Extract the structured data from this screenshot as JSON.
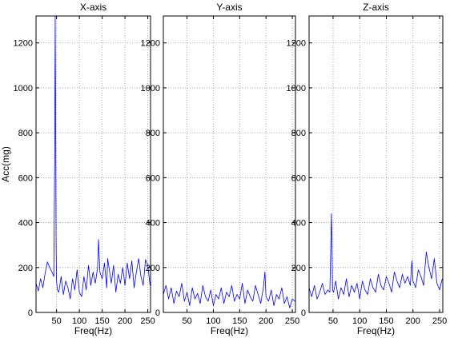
{
  "chart_data": [
    {
      "type": "line",
      "title": "X-axis",
      "xlabel": "Freq(Hz)",
      "ylabel": "Acc(mg)",
      "xlim": [
        5,
        256
      ],
      "ylim": [
        0,
        1320
      ],
      "xticks": [
        50,
        100,
        150,
        200,
        250
      ],
      "yticks": [
        0,
        200,
        400,
        600,
        800,
        1000,
        1200
      ],
      "grid": true,
      "series": [
        {
          "color": "#0000ff",
          "x": [
            5,
            10,
            15,
            20,
            25,
            30,
            35,
            40,
            44,
            46,
            47,
            48,
            49,
            50,
            52,
            55,
            60,
            65,
            70,
            75,
            80,
            85,
            90,
            95,
            100,
            105,
            110,
            115,
            120,
            125,
            130,
            135,
            140,
            142,
            145,
            150,
            155,
            160,
            162,
            165,
            170,
            175,
            180,
            185,
            190,
            195,
            200,
            205,
            210,
            215,
            220,
            225,
            230,
            235,
            240,
            245,
            250,
            255
          ],
          "values": [
            130,
            95,
            150,
            110,
            175,
            225,
            200,
            180,
            160,
            700,
            1320,
            900,
            300,
            140,
            100,
            90,
            160,
            80,
            140,
            110,
            60,
            150,
            100,
            190,
            90,
            70,
            160,
            100,
            210,
            120,
            180,
            130,
            200,
            325,
            180,
            150,
            220,
            110,
            240,
            200,
            130,
            210,
            90,
            170,
            130,
            200,
            120,
            220,
            150,
            230,
            110,
            180,
            240,
            160,
            120,
            235,
            210,
            120
          ]
        }
      ]
    },
    {
      "type": "line",
      "title": "Y-axis",
      "xlabel": "Freq(Hz)",
      "ylabel": "",
      "xlim": [
        5,
        256
      ],
      "ylim": [
        0,
        1320
      ],
      "xticks": [
        50,
        100,
        150,
        200,
        250
      ],
      "yticks": [
        0,
        200,
        400,
        600,
        800,
        1000,
        1200
      ],
      "grid": true,
      "series": [
        {
          "color": "#0000ff",
          "x": [
            5,
            10,
            15,
            20,
            25,
            30,
            35,
            40,
            45,
            50,
            55,
            60,
            65,
            70,
            75,
            80,
            85,
            90,
            95,
            100,
            105,
            110,
            115,
            120,
            125,
            130,
            135,
            140,
            145,
            150,
            155,
            160,
            165,
            170,
            175,
            180,
            185,
            190,
            195,
            198,
            200,
            205,
            210,
            215,
            220,
            225,
            230,
            235,
            240,
            245,
            250,
            255
          ],
          "values": [
            80,
            120,
            60,
            110,
            40,
            95,
            70,
            130,
            50,
            90,
            30,
            110,
            60,
            85,
            40,
            120,
            70,
            50,
            100,
            30,
            80,
            60,
            110,
            40,
            90,
            70,
            120,
            50,
            80,
            60,
            130,
            40,
            100,
            70,
            50,
            120,
            80,
            40,
            110,
            180,
            70,
            50,
            100,
            30,
            80,
            60,
            110,
            40,
            70,
            20,
            60,
            50
          ]
        }
      ]
    },
    {
      "type": "line",
      "title": "Z-axis",
      "xlabel": "Freq(Hz)",
      "ylabel": "",
      "xlim": [
        5,
        256
      ],
      "ylim": [
        0,
        1320
      ],
      "xticks": [
        50,
        100,
        150,
        200,
        250
      ],
      "yticks": [
        0,
        200,
        400,
        600,
        800,
        1000,
        1200
      ],
      "grid": true,
      "series": [
        {
          "color": "#0000ff",
          "x": [
            5,
            10,
            15,
            20,
            25,
            30,
            35,
            40,
            44,
            47,
            48,
            49,
            51,
            55,
            60,
            65,
            70,
            75,
            80,
            85,
            90,
            95,
            100,
            105,
            110,
            115,
            120,
            125,
            130,
            135,
            140,
            145,
            150,
            155,
            160,
            165,
            170,
            175,
            180,
            185,
            190,
            195,
            198,
            200,
            205,
            210,
            215,
            220,
            225,
            230,
            235,
            240,
            245,
            250,
            255
          ],
          "values": [
            110,
            70,
            120,
            60,
            90,
            130,
            80,
            100,
            90,
            440,
            300,
            100,
            90,
            140,
            60,
            110,
            80,
            150,
            70,
            120,
            90,
            130,
            60,
            140,
            100,
            80,
            150,
            110,
            90,
            170,
            120,
            100,
            160,
            130,
            90,
            180,
            140,
            110,
            170,
            130,
            160,
            120,
            230,
            140,
            110,
            190,
            160,
            120,
            270,
            200,
            150,
            240,
            130,
            100,
            150
          ]
        }
      ]
    }
  ]
}
